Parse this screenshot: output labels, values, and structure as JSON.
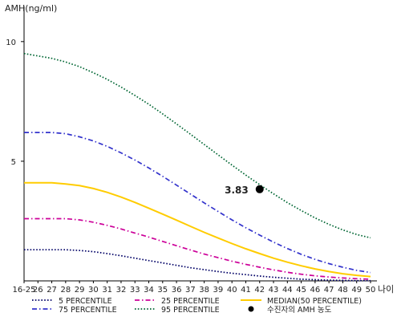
{
  "chart_data": {
    "type": "line",
    "ylabel": "AMH(ng/ml)",
    "xlabel": "나이",
    "x_tick_labels": [
      "16-25",
      "26",
      "27",
      "28",
      "29",
      "30",
      "31",
      "32",
      "33",
      "34",
      "35",
      "36",
      "37",
      "38",
      "39",
      "40",
      "41",
      "42",
      "43",
      "44",
      "45",
      "46",
      "47",
      "48",
      "49",
      "50"
    ],
    "y_ticks": [
      5,
      10
    ],
    "ylim": [
      0,
      11
    ],
    "grid": false,
    "legend_position": "bottom",
    "series": [
      {
        "name": "5 PERCENTILE",
        "color": "#000066",
        "style": "dotted",
        "values": [
          1.3,
          1.3,
          1.3,
          1.3,
          1.27,
          1.22,
          1.14,
          1.05,
          0.95,
          0.85,
          0.75,
          0.65,
          0.55,
          0.47,
          0.39,
          0.32,
          0.26,
          0.2,
          0.15,
          0.11,
          0.07,
          0.05,
          0.03,
          0.02,
          0.01,
          0.01
        ]
      },
      {
        "name": "25 PERCENTILE",
        "color": "#cc0099",
        "style": "dashdot",
        "values": [
          2.6,
          2.6,
          2.6,
          2.6,
          2.55,
          2.45,
          2.32,
          2.17,
          2.0,
          1.83,
          1.65,
          1.47,
          1.29,
          1.12,
          0.97,
          0.82,
          0.69,
          0.57,
          0.46,
          0.36,
          0.28,
          0.21,
          0.16,
          0.12,
          0.09,
          0.07
        ]
      },
      {
        "name": "MEDIAN(50 PERCENTILE)",
        "color": "#ffcc00",
        "style": "solid",
        "values": [
          4.1,
          4.1,
          4.1,
          4.05,
          3.98,
          3.86,
          3.7,
          3.5,
          3.28,
          3.04,
          2.79,
          2.54,
          2.28,
          2.03,
          1.79,
          1.56,
          1.34,
          1.14,
          0.95,
          0.78,
          0.63,
          0.5,
          0.39,
          0.3,
          0.23,
          0.18
        ]
      },
      {
        "name": "75 PERCENTILE",
        "color": "#3333cc",
        "style": "dashdot",
        "values": [
          6.2,
          6.2,
          6.2,
          6.15,
          6.02,
          5.85,
          5.62,
          5.35,
          5.05,
          4.72,
          4.37,
          4.0,
          3.63,
          3.26,
          2.9,
          2.55,
          2.22,
          1.91,
          1.62,
          1.35,
          1.11,
          0.9,
          0.72,
          0.57,
          0.44,
          0.35
        ]
      },
      {
        "name": "95 PERCENTILE",
        "color": "#006633",
        "style": "dotted",
        "values": [
          9.5,
          9.4,
          9.3,
          9.15,
          8.95,
          8.7,
          8.42,
          8.1,
          7.75,
          7.38,
          6.98,
          6.56,
          6.13,
          5.7,
          5.27,
          4.84,
          4.42,
          4.02,
          3.64,
          3.27,
          2.94,
          2.63,
          2.36,
          2.13,
          1.94,
          1.8
        ]
      }
    ],
    "annotations": [
      {
        "label": "3.83",
        "x_index": 17,
        "y": 3.83,
        "marker": "circle",
        "color": "#000000"
      }
    ],
    "extra_legend": {
      "label": "수진자의 AMH 농도",
      "marker": "circle",
      "color": "#000000"
    }
  }
}
